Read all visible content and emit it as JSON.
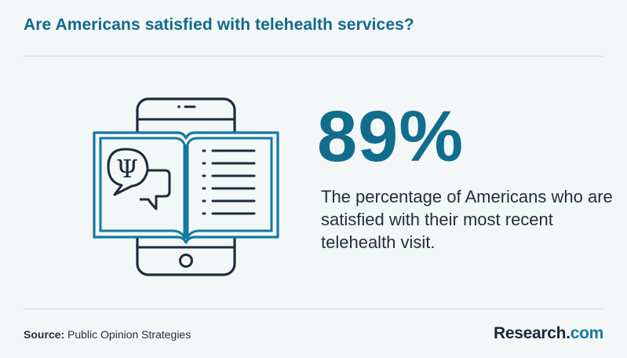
{
  "header": {
    "title": "Are Americans satisfied with telehealth services?"
  },
  "illustration": {
    "icon": "phone-book-psychology-icon",
    "symbol": "Ψ",
    "color_dark": "#1c2d3d",
    "color_accent": "#137aa0"
  },
  "stat": {
    "value": "89%",
    "caption": "The percentage of Americans who are satisfied with their most recent telehealth visit."
  },
  "footer": {
    "source_label": "Source:",
    "source_text": "Public Opinion Strategies",
    "brand_main": "Research",
    "brand_dot": ".",
    "brand_tld": "com"
  },
  "colors": {
    "background": "#f4f7f8",
    "title": "#106b8a",
    "stat": "#116d8c",
    "body_text": "#1f2e3c",
    "divider": "#d6dcdf"
  }
}
